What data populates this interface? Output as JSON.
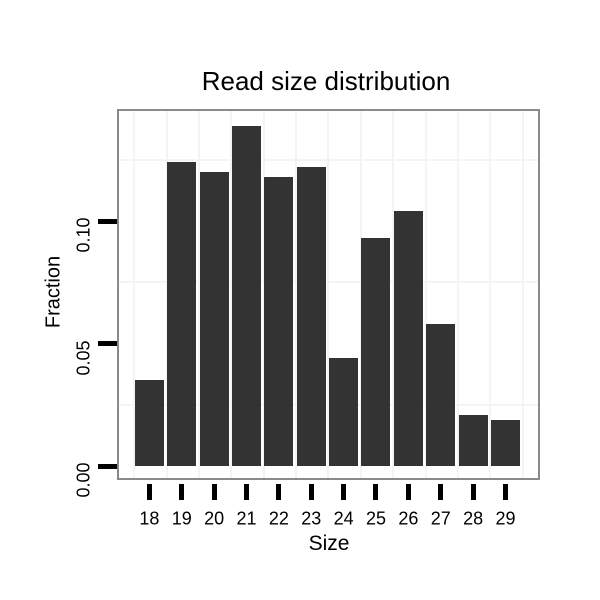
{
  "title": "Read size distribution",
  "chart_data": {
    "type": "bar",
    "title": "Read size distribution",
    "xlabel": "Size",
    "ylabel": "Fraction",
    "categories": [
      "18",
      "19",
      "20",
      "21",
      "22",
      "23",
      "24",
      "25",
      "26",
      "27",
      "28",
      "29"
    ],
    "values": [
      0.035,
      0.124,
      0.12,
      0.139,
      0.118,
      0.122,
      0.044,
      0.093,
      0.104,
      0.058,
      0.021,
      0.019
    ],
    "yticks": [
      {
        "value": 0.0,
        "label": "0.00"
      },
      {
        "value": 0.05,
        "label": "0.05"
      },
      {
        "value": 0.1,
        "label": "0.10"
      }
    ],
    "minor_gridlines": [
      0.025,
      0.075,
      0.125
    ],
    "ylim": [
      0,
      0.145
    ],
    "grid": "on",
    "legend": "none",
    "bar_color": "#333333",
    "panel_border_color": "#8a8a8a",
    "grid_color": "#f4f4f4",
    "tick_color": "#000000",
    "text_color": "#000000",
    "background_color": "#ffffff"
  }
}
